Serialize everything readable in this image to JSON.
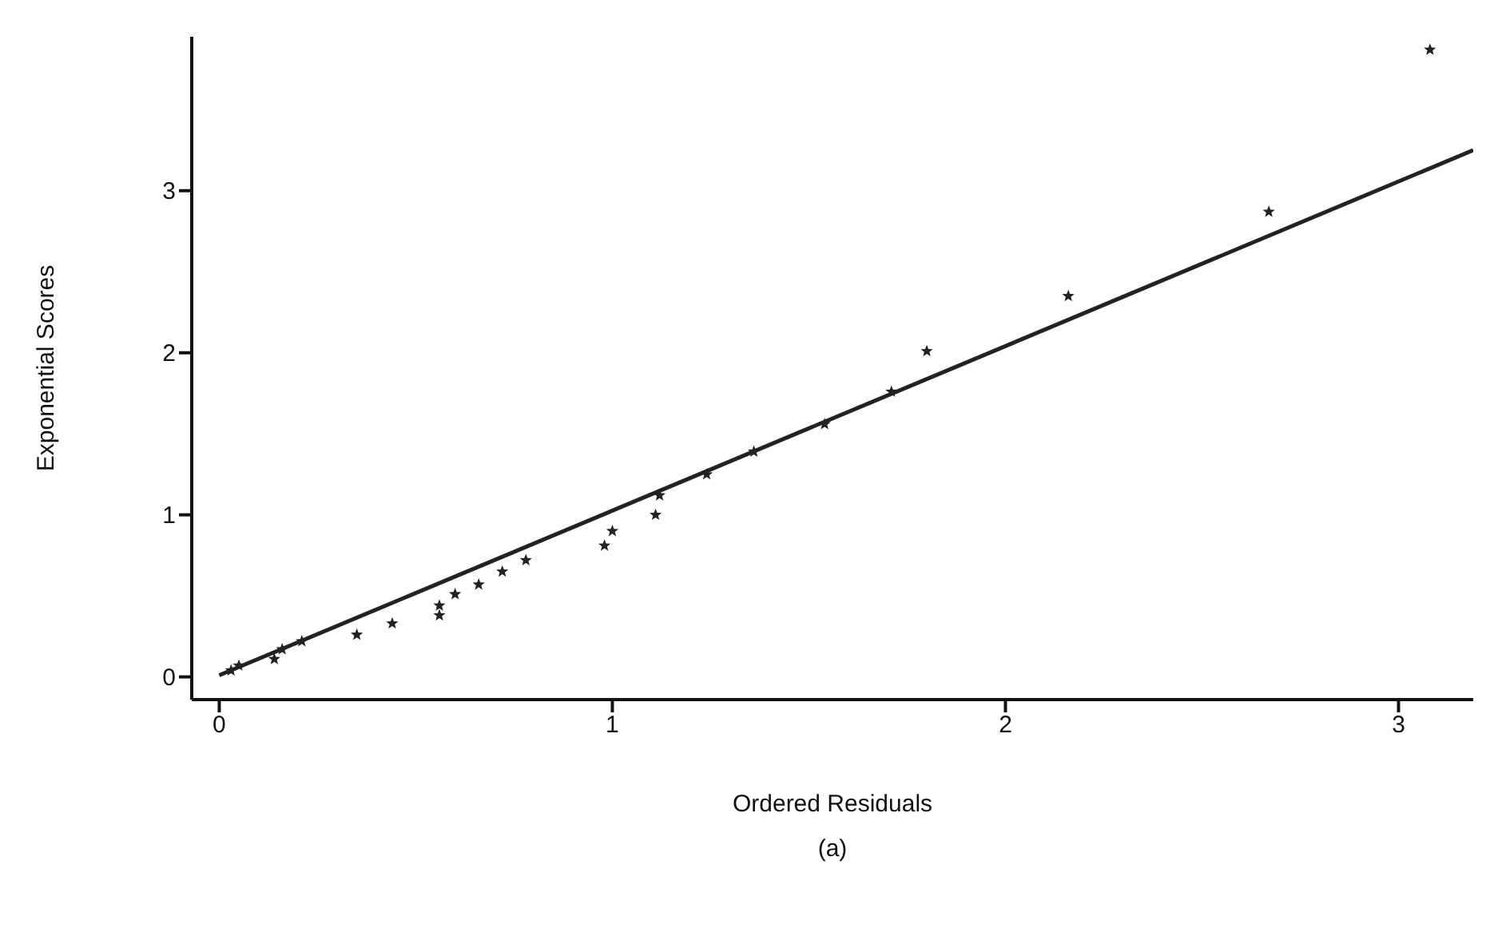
{
  "chart_data": {
    "type": "scatter",
    "xlabel": "Ordered Residuals",
    "ylabel": "Exponential Scores",
    "annotations": [
      "(a)"
    ],
    "xlim": [
      -0.07,
      3.19
    ],
    "ylim": [
      -0.14,
      3.95
    ],
    "xticks": [
      0,
      1,
      2,
      3
    ],
    "yticks": [
      0,
      1,
      2,
      3
    ],
    "grid": false,
    "legend": false,
    "marker": "star",
    "series": [
      {
        "color": "#222222",
        "x": [
          0.03,
          0.05,
          0.14,
          0.16,
          0.21,
          0.35,
          0.44,
          0.56,
          0.56,
          0.6,
          0.66,
          0.72,
          0.78,
          0.98,
          1.0,
          1.11,
          1.12,
          1.24,
          1.36,
          1.54,
          1.71,
          1.8,
          2.16,
          2.67,
          3.08
        ],
        "values": [
          0.04,
          0.07,
          0.11,
          0.17,
          0.22,
          0.26,
          0.33,
          0.38,
          0.44,
          0.51,
          0.57,
          0.65,
          0.72,
          0.81,
          0.9,
          1.0,
          1.12,
          1.25,
          1.39,
          1.56,
          1.76,
          2.01,
          2.35,
          2.87,
          3.87
        ]
      },
      {
        "type": "line",
        "color": "#222222",
        "marker": "none",
        "line_style": "solid",
        "x": [
          0,
          3.19
        ],
        "values": [
          0.01,
          3.25
        ]
      }
    ]
  }
}
